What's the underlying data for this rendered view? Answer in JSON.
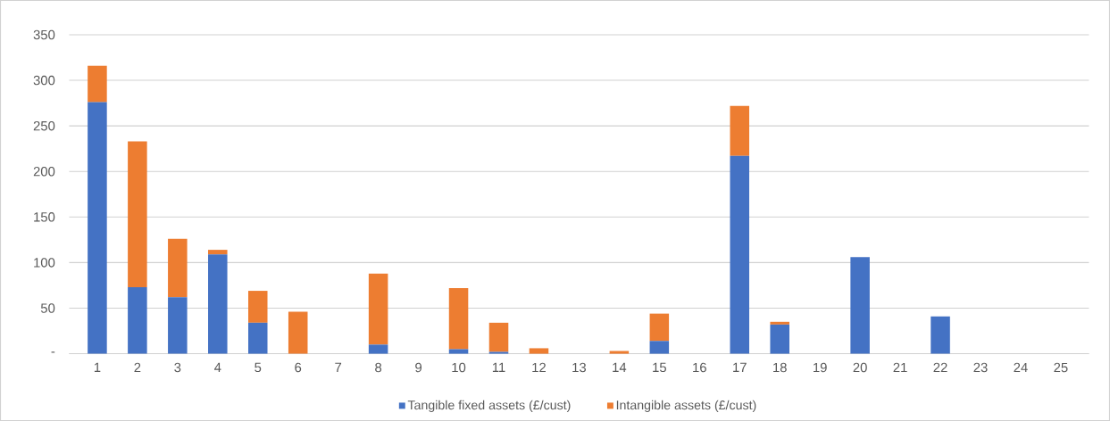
{
  "chart_data": {
    "type": "bar",
    "stacked": true,
    "categories": [
      "1",
      "2",
      "3",
      "4",
      "5",
      "6",
      "7",
      "8",
      "9",
      "10",
      "11",
      "12",
      "13",
      "14",
      "15",
      "16",
      "17",
      "18",
      "19",
      "20",
      "21",
      "22",
      "23",
      "24",
      "25"
    ],
    "series": [
      {
        "name": "Tangible fixed assets (£/cust)",
        "color": "#4472c4",
        "values": [
          276,
          73,
          62,
          109,
          34,
          0,
          0,
          10,
          0,
          5,
          2,
          0,
          0,
          0,
          14,
          0,
          217,
          32,
          0,
          106,
          0,
          41,
          0,
          0,
          0
        ]
      },
      {
        "name": "Intangible assets (£/cust)",
        "color": "#ed7d31",
        "values": [
          40,
          160,
          64,
          5,
          35,
          46,
          0,
          78,
          0,
          67,
          32,
          6,
          0,
          3,
          30,
          0,
          55,
          3,
          0,
          0,
          0,
          0,
          0,
          0,
          0
        ]
      }
    ],
    "ylim": [
      0,
      350
    ],
    "yticks": [
      {
        "value": 0,
        "label": "-"
      },
      50,
      100,
      150,
      200,
      250,
      300,
      350
    ],
    "grid": "y",
    "legend": "bottom"
  }
}
